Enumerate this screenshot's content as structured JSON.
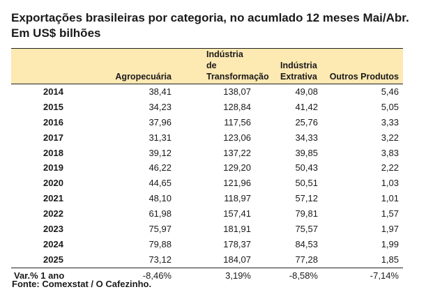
{
  "title": "Exportações brasileiras por categoria, no acumlado 12 meses Mai/Abr. Em US$ bilhões",
  "source": "Fonte: Comexstat / O Cafezinho.",
  "chart_data": {
    "type": "table",
    "title": "Exportações brasileiras por categoria, no acumlado 12 meses Mai/Abr. Em US$ bilhões",
    "columns": [
      "",
      "Agropecuária",
      "Indústria de Transformação",
      "Indústria Extrativa",
      "Outros Produtos"
    ],
    "column_lines": [
      [
        ""
      ],
      [
        "Agropecuária"
      ],
      [
        "Indústria de",
        "Transformação"
      ],
      [
        "Indústria",
        "Extrativa"
      ],
      [
        "Outros Produtos"
      ]
    ],
    "rows": [
      [
        "2014",
        "38,41",
        "138,07",
        "49,08",
        "5,46"
      ],
      [
        "2015",
        "34,23",
        "128,84",
        "41,42",
        "5,05"
      ],
      [
        "2016",
        "37,96",
        "117,56",
        "25,76",
        "3,33"
      ],
      [
        "2017",
        "31,31",
        "123,06",
        "34,33",
        "3,22"
      ],
      [
        "2018",
        "39,12",
        "137,22",
        "39,85",
        "3,83"
      ],
      [
        "2019",
        "46,22",
        "129,20",
        "50,43",
        "2,22"
      ],
      [
        "2020",
        "44,65",
        "121,96",
        "50,51",
        "1,03"
      ],
      [
        "2021",
        "48,10",
        "118,97",
        "57,12",
        "1,01"
      ],
      [
        "2022",
        "61,98",
        "157,41",
        "79,81",
        "1,57"
      ],
      [
        "2023",
        "75,97",
        "181,91",
        "75,57",
        "1,97"
      ],
      [
        "2024",
        "79,88",
        "178,37",
        "84,53",
        "1,99"
      ],
      [
        "2025",
        "73,12",
        "184,07",
        "77,28",
        "1,85"
      ]
    ],
    "variation_row": [
      "Var.% 1 ano",
      "-8,46%",
      "3,19%",
      "-8,58%",
      "-7,14%"
    ],
    "colors": {
      "header_background": "#fde9b2",
      "rule": "#222222"
    }
  }
}
